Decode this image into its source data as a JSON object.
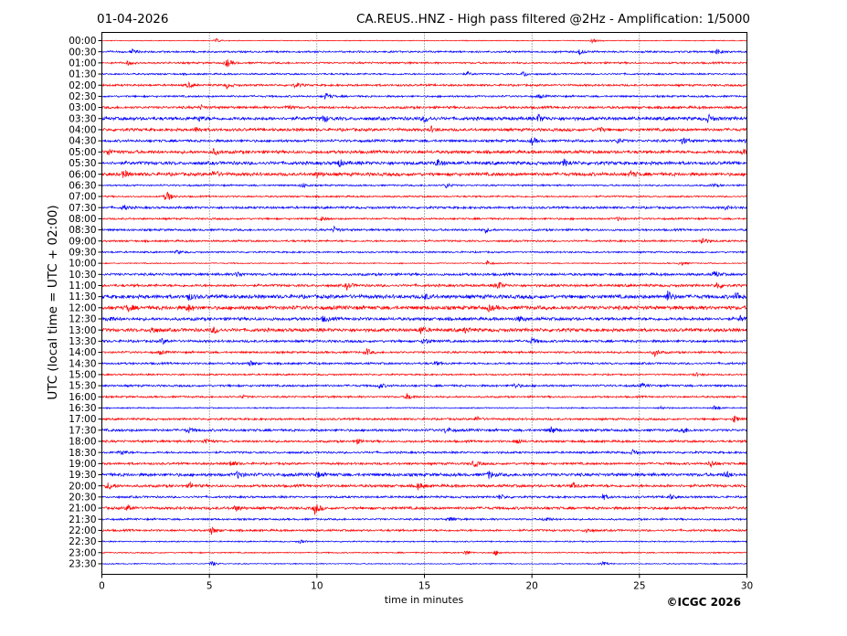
{
  "chart_data": {
    "type": "line",
    "subtype": "helicorder",
    "date": "01-04-2026",
    "title": "CA.REUS..HNZ - High pass filtered @2Hz - Amplification: 1/5000",
    "xlabel": "time in minutes",
    "ylabel": "UTC (local time = UTC + 02:00)",
    "xlim": [
      0,
      30
    ],
    "xticks": [
      "0",
      "5",
      "10",
      "15",
      "20",
      "25",
      "30"
    ],
    "xtick_values": [
      0,
      5,
      10,
      15,
      20,
      25,
      30
    ],
    "grid": "vertical dotted at 5-minute ticks",
    "copyright": "©ICGC 2026",
    "colors": {
      "odd": "#ff0000",
      "even": "#0000ff"
    },
    "rows": [
      {
        "label": "00:00",
        "level": 0.4,
        "events": [
          [
            5.3,
            2
          ],
          [
            22.8,
            2
          ]
        ]
      },
      {
        "label": "00:30",
        "level": 0.9,
        "events": [
          [
            1.4,
            2.5
          ],
          [
            22.2,
            3
          ],
          [
            28.6,
            3
          ]
        ]
      },
      {
        "label": "01:00",
        "level": 0.9,
        "events": [
          [
            5.8,
            5
          ],
          [
            1.2,
            2
          ]
        ]
      },
      {
        "label": "01:30",
        "level": 0.8,
        "events": [
          [
            19.6,
            3
          ],
          [
            17.0,
            2
          ]
        ]
      },
      {
        "label": "02:00",
        "level": 1.0,
        "events": [
          [
            4.0,
            3
          ],
          [
            5.8,
            3
          ],
          [
            9.0,
            3
          ]
        ]
      },
      {
        "label": "02:30",
        "level": 0.9,
        "events": [
          [
            10.4,
            4
          ],
          [
            20.3,
            2
          ]
        ]
      },
      {
        "label": "03:00",
        "level": 1.2,
        "events": [
          [
            8.6,
            3
          ],
          [
            4.6,
            2
          ]
        ]
      },
      {
        "label": "03:30",
        "level": 1.6,
        "events": [
          [
            10.3,
            4
          ],
          [
            15.0,
            4
          ],
          [
            20.3,
            4
          ],
          [
            28.2,
            4
          ],
          [
            4.5,
            3
          ]
        ]
      },
      {
        "label": "04:00",
        "level": 1.4,
        "events": [
          [
            4.4,
            3
          ],
          [
            15.3,
            3
          ],
          [
            23.1,
            3
          ]
        ]
      },
      {
        "label": "04:30",
        "level": 1.2,
        "events": [
          [
            20.0,
            4
          ],
          [
            27.0,
            4
          ],
          [
            24.0,
            3
          ],
          [
            30,
            4
          ]
        ]
      },
      {
        "label": "05:00",
        "level": 1.5,
        "events": [
          [
            0.3,
            4
          ],
          [
            5.2,
            3
          ],
          [
            29.8,
            3
          ]
        ]
      },
      {
        "label": "05:30",
        "level": 1.6,
        "events": [
          [
            11.0,
            4
          ],
          [
            15.6,
            4
          ],
          [
            21.5,
            4
          ]
        ]
      },
      {
        "label": "06:00",
        "level": 1.6,
        "events": [
          [
            1.0,
            4
          ],
          [
            5.2,
            4
          ],
          [
            10.0,
            3
          ],
          [
            24.6,
            3
          ]
        ]
      },
      {
        "label": "06:30",
        "level": 0.8,
        "events": [
          [
            9.3,
            3
          ],
          [
            16.0,
            3
          ],
          [
            28.4,
            2
          ]
        ]
      },
      {
        "label": "07:00",
        "level": 0.8,
        "events": [
          [
            3.0,
            7
          ]
        ]
      },
      {
        "label": "07:30",
        "level": 1.1,
        "events": [
          [
            1.0,
            3
          ],
          [
            29.0,
            2
          ]
        ]
      },
      {
        "label": "08:00",
        "level": 0.9,
        "events": [
          [
            10.2,
            2
          ],
          [
            24.0,
            2
          ]
        ]
      },
      {
        "label": "08:30",
        "level": 1.0,
        "events": [
          [
            10.8,
            3
          ],
          [
            17.8,
            3
          ]
        ]
      },
      {
        "label": "09:00",
        "level": 0.9,
        "events": [
          [
            27.9,
            5
          ]
        ]
      },
      {
        "label": "09:30",
        "level": 0.8,
        "events": [
          [
            3.5,
            2
          ]
        ]
      },
      {
        "label": "10:00",
        "level": 0.5,
        "events": [
          [
            17.9,
            3
          ],
          [
            26.9,
            3
          ]
        ]
      },
      {
        "label": "10:30",
        "level": 1.2,
        "events": [
          [
            6.3,
            3
          ],
          [
            28.5,
            4
          ]
        ]
      },
      {
        "label": "11:00",
        "level": 1.2,
        "events": [
          [
            11.4,
            4
          ],
          [
            18.4,
            5
          ],
          [
            28.6,
            4
          ]
        ]
      },
      {
        "label": "11:30",
        "level": 1.8,
        "events": [
          [
            4.0,
            4
          ],
          [
            26.3,
            6
          ],
          [
            29.5,
            5
          ],
          [
            15.0,
            3
          ]
        ]
      },
      {
        "label": "12:00",
        "level": 1.8,
        "events": [
          [
            1.2,
            4
          ],
          [
            4.0,
            4
          ],
          [
            18.0,
            3
          ]
        ]
      },
      {
        "label": "12:30",
        "level": 1.5,
        "events": [
          [
            0.3,
            3
          ],
          [
            10.3,
            3
          ],
          [
            19.4,
            3
          ],
          [
            29.7,
            3
          ]
        ]
      },
      {
        "label": "13:00",
        "level": 1.6,
        "events": [
          [
            2.3,
            4
          ],
          [
            5.2,
            4
          ],
          [
            14.8,
            4
          ],
          [
            16.9,
            3
          ]
        ]
      },
      {
        "label": "13:30",
        "level": 1.2,
        "events": [
          [
            2.8,
            3
          ],
          [
            15.0,
            4
          ],
          [
            20.0,
            3
          ]
        ]
      },
      {
        "label": "14:00",
        "level": 1.0,
        "events": [
          [
            12.3,
            4
          ],
          [
            25.7,
            4
          ],
          [
            2.7,
            2
          ]
        ]
      },
      {
        "label": "14:30",
        "level": 1.0,
        "events": [
          [
            6.9,
            3
          ],
          [
            15.5,
            2
          ]
        ]
      },
      {
        "label": "15:00",
        "level": 0.8,
        "events": [
          [
            27.6,
            2
          ]
        ]
      },
      {
        "label": "15:30",
        "level": 1.0,
        "events": [
          [
            12.9,
            3
          ],
          [
            19.2,
            3
          ],
          [
            25.1,
            2
          ]
        ]
      },
      {
        "label": "16:00",
        "level": 0.9,
        "events": [
          [
            14.2,
            4
          ],
          [
            6.5,
            2
          ]
        ]
      },
      {
        "label": "16:30",
        "level": 0.6,
        "events": [
          [
            28.5,
            3
          ],
          [
            26.0,
            2
          ]
        ]
      },
      {
        "label": "17:00",
        "level": 1.0,
        "events": [
          [
            17.4,
            3
          ],
          [
            29.4,
            4
          ]
        ]
      },
      {
        "label": "17:30",
        "level": 1.2,
        "events": [
          [
            4.0,
            3
          ],
          [
            16.0,
            4
          ],
          [
            20.9,
            4
          ],
          [
            27.0,
            4
          ]
        ]
      },
      {
        "label": "18:00",
        "level": 1.1,
        "events": [
          [
            4.8,
            4
          ],
          [
            11.8,
            3
          ],
          [
            19.3,
            3
          ]
        ]
      },
      {
        "label": "18:30",
        "level": 1.0,
        "events": [
          [
            0.9,
            3
          ],
          [
            24.7,
            3
          ]
        ]
      },
      {
        "label": "19:00",
        "level": 1.1,
        "events": [
          [
            6.0,
            4
          ],
          [
            17.3,
            4
          ],
          [
            28.3,
            4
          ]
        ]
      },
      {
        "label": "19:30",
        "level": 1.5,
        "events": [
          [
            6.3,
            4
          ],
          [
            10.0,
            3
          ],
          [
            18.0,
            4
          ],
          [
            29.0,
            4
          ]
        ]
      },
      {
        "label": "20:00",
        "level": 1.3,
        "events": [
          [
            0.3,
            4
          ],
          [
            4.1,
            3
          ],
          [
            14.7,
            4
          ],
          [
            21.9,
            3
          ]
        ]
      },
      {
        "label": "20:30",
        "level": 1.0,
        "events": [
          [
            18.5,
            3
          ],
          [
            23.3,
            3
          ],
          [
            26.4,
            3
          ]
        ]
      },
      {
        "label": "21:00",
        "level": 1.3,
        "events": [
          [
            1.2,
            4
          ],
          [
            9.9,
            6
          ],
          [
            6.2,
            3
          ]
        ]
      },
      {
        "label": "21:30",
        "level": 0.9,
        "events": [
          [
            16.2,
            3
          ],
          [
            20.6,
            3
          ]
        ]
      },
      {
        "label": "22:00",
        "level": 1.0,
        "events": [
          [
            5.1,
            4
          ],
          [
            22.5,
            3
          ]
        ]
      },
      {
        "label": "22:30",
        "level": 0.6,
        "events": [
          [
            9.2,
            2
          ]
        ]
      },
      {
        "label": "23:00",
        "level": 0.6,
        "events": [
          [
            16.9,
            3
          ],
          [
            18.3,
            3
          ]
        ]
      },
      {
        "label": "23:30",
        "level": 0.5,
        "events": [
          [
            5.1,
            3
          ],
          [
            23.3,
            2
          ]
        ]
      }
    ]
  }
}
